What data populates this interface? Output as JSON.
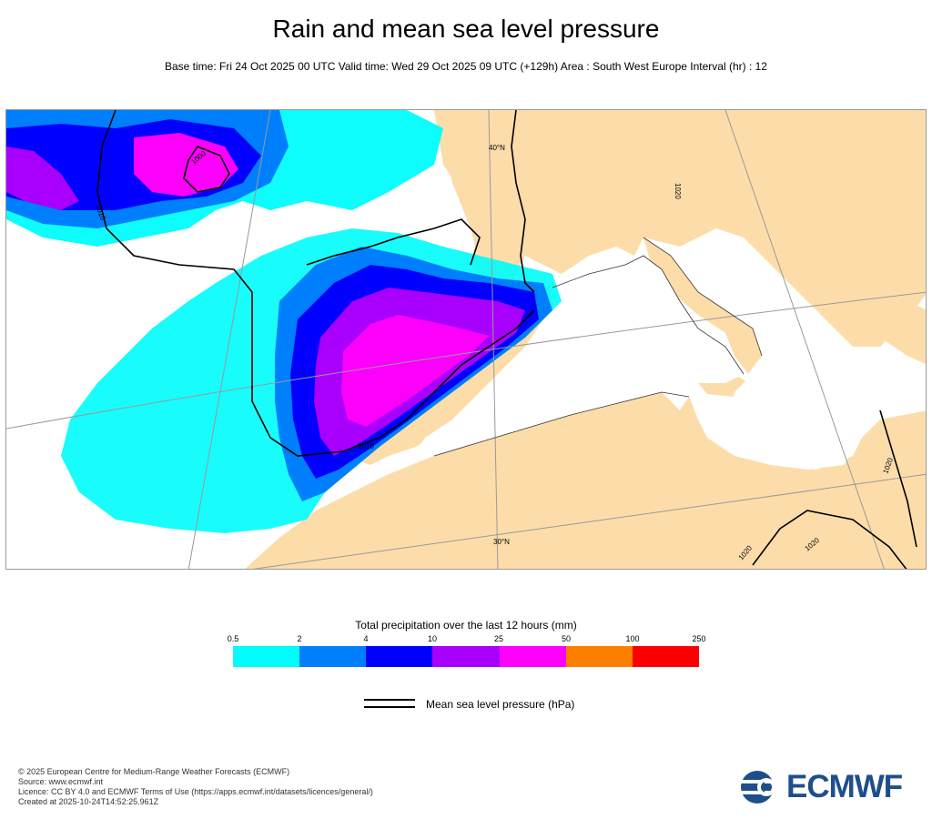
{
  "title": "Rain and mean sea level pressure",
  "subtitle": "Base time: Fri 24 Oct 2025 00 UTC Valid time: Wed 29 Oct 2025 09 UTC (+129h) Area : South West Europe Interval (hr) : 12",
  "map": {
    "area": "South West Europe",
    "isobar_labels": [
      "1000",
      "1010",
      "1010",
      "1020",
      "1020",
      "1020",
      "1020"
    ],
    "graticule_labels": [
      "40°N",
      "30°N"
    ]
  },
  "legend": {
    "title": "Total precipitation over the last 12 hours (mm)",
    "ticks": [
      "0.5",
      "2",
      "4",
      "10",
      "25",
      "50",
      "100",
      "250"
    ],
    "colors": [
      "#00fcfc",
      "#007ffc",
      "#0000fc",
      "#a800fc",
      "#fc00fc",
      "#fc7f00",
      "#fc0000"
    ]
  },
  "mslp_legend": {
    "label": "Mean sea level pressure (hPa)"
  },
  "footer": {
    "lines": [
      "© 2025 European Centre for Medium-Range Weather Forecasts (ECMWF)",
      "Source: www.ecmwf.int",
      "Licence: CC BY 4.0 and ECMWF Terms of Use (https://apps.ecmwf.int/datasets/licences/general/)",
      "Created at 2025-10-24T14:52:25.961Z"
    ]
  },
  "logo": {
    "text": "ECMWF",
    "color": "#1e4e8c"
  }
}
